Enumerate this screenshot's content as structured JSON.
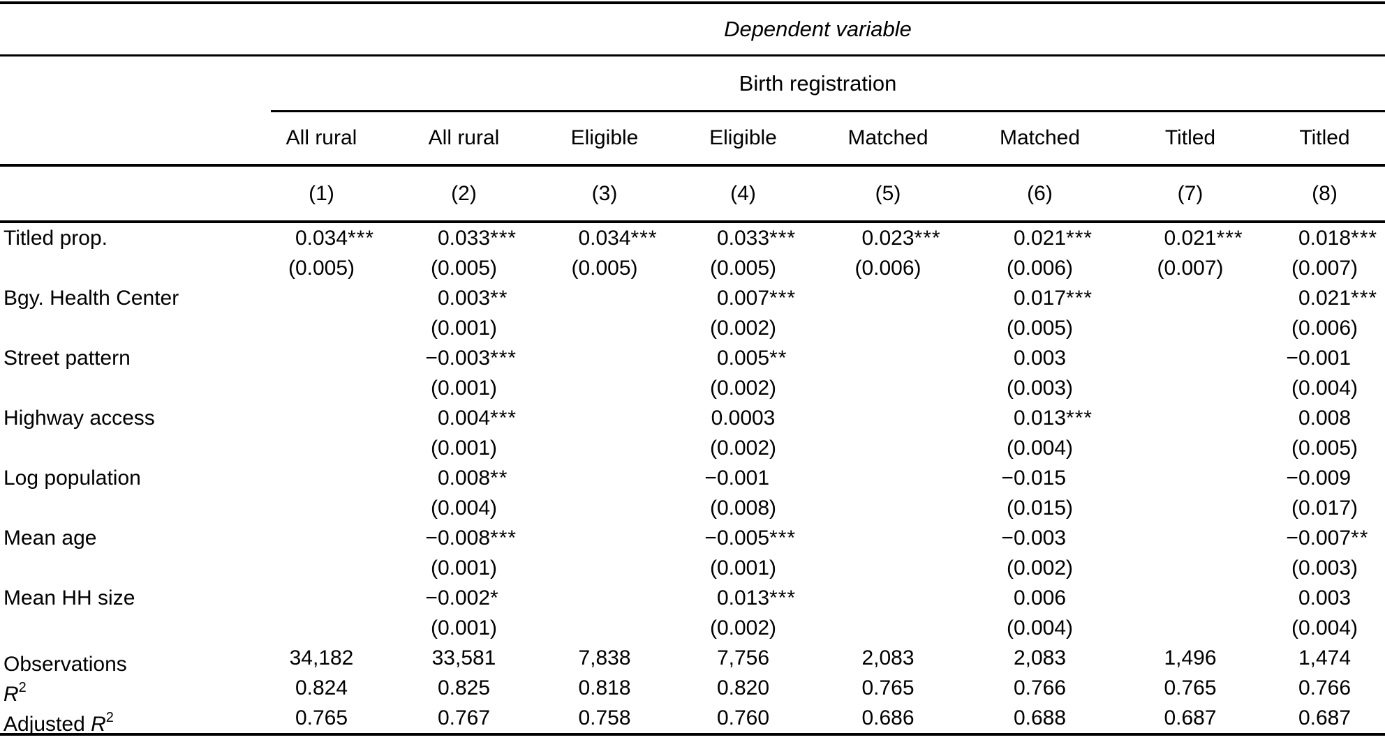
{
  "header": {
    "dependent_variable_label": "Dependent variable",
    "outcome_label": "Birth registration"
  },
  "table": {
    "columns": [
      "All rural",
      "All rural",
      "Eligible",
      "Eligible",
      "Matched",
      "Matched",
      "Titled",
      "Titled"
    ],
    "column_numbers": [
      "(1)",
      "(2)",
      "(3)",
      "(4)",
      "(5)",
      "(6)",
      "(7)",
      "(8)"
    ],
    "coef_rows": [
      {
        "label": "Titled prop.",
        "est": [
          "0.034***",
          "0.033***",
          "0.034***",
          "0.033***",
          "0.023***",
          "0.021***",
          "0.021***",
          "0.018***"
        ],
        "se": [
          "(0.005)",
          "(0.005)",
          "(0.005)",
          "(0.005)",
          "(0.006)",
          "(0.006)",
          "(0.007)",
          "(0.007)"
        ]
      },
      {
        "label": "Bgy. Health Center",
        "est": [
          "",
          "0.003**",
          "",
          "0.007***",
          "",
          "0.017***",
          "",
          "0.021***"
        ],
        "se": [
          "",
          "(0.001)",
          "",
          "(0.002)",
          "",
          "(0.005)",
          "",
          "(0.006)"
        ]
      },
      {
        "label": "Street pattern",
        "est": [
          "",
          "−0.003***",
          "",
          "0.005**",
          "",
          "0.003",
          "",
          "−0.001"
        ],
        "se": [
          "",
          "(0.001)",
          "",
          "(0.002)",
          "",
          "(0.003)",
          "",
          "(0.004)"
        ]
      },
      {
        "label": "Highway access",
        "est": [
          "",
          "0.004***",
          "",
          "0.0003",
          "",
          "0.013***",
          "",
          "0.008"
        ],
        "se": [
          "",
          "(0.001)",
          "",
          "(0.002)",
          "",
          "(0.004)",
          "",
          "(0.005)"
        ]
      },
      {
        "label": "Log population",
        "est": [
          "",
          "0.008**",
          "",
          "−0.001",
          "",
          "−0.015",
          "",
          "−0.009"
        ],
        "se": [
          "",
          "(0.004)",
          "",
          "(0.008)",
          "",
          "(0.015)",
          "",
          "(0.017)"
        ]
      },
      {
        "label": "Mean age",
        "est": [
          "",
          "−0.008***",
          "",
          "−0.005***",
          "",
          "−0.003",
          "",
          "−0.007**"
        ],
        "se": [
          "",
          "(0.001)",
          "",
          "(0.001)",
          "",
          "(0.002)",
          "",
          "(0.003)"
        ]
      },
      {
        "label": "Mean HH size",
        "est": [
          "",
          "−0.002*",
          "",
          "0.013***",
          "",
          "0.006",
          "",
          "0.003"
        ],
        "se": [
          "",
          "(0.001)",
          "",
          "(0.002)",
          "",
          "(0.004)",
          "",
          "(0.004)"
        ]
      }
    ],
    "stat_rows": [
      {
        "label_prefix": "Observations",
        "label_sym": "",
        "label_sup": "",
        "values": [
          "34,182",
          "33,581",
          "7,838",
          "7,756",
          "2,083",
          "2,083",
          "1,496",
          "1,474"
        ]
      },
      {
        "label_prefix": "",
        "label_sym": "R",
        "label_sup": "2",
        "values": [
          "0.824",
          "0.825",
          "0.818",
          "0.820",
          "0.765",
          "0.766",
          "0.765",
          "0.766"
        ]
      },
      {
        "label_prefix": "Adjusted ",
        "label_sym": "R",
        "label_sup": "2",
        "values": [
          "0.765",
          "0.767",
          "0.758",
          "0.760",
          "0.686",
          "0.688",
          "0.687",
          "0.687"
        ]
      }
    ]
  },
  "colors": {
    "text": "#000000",
    "background": "#ffffff",
    "rule": "#000000"
  }
}
